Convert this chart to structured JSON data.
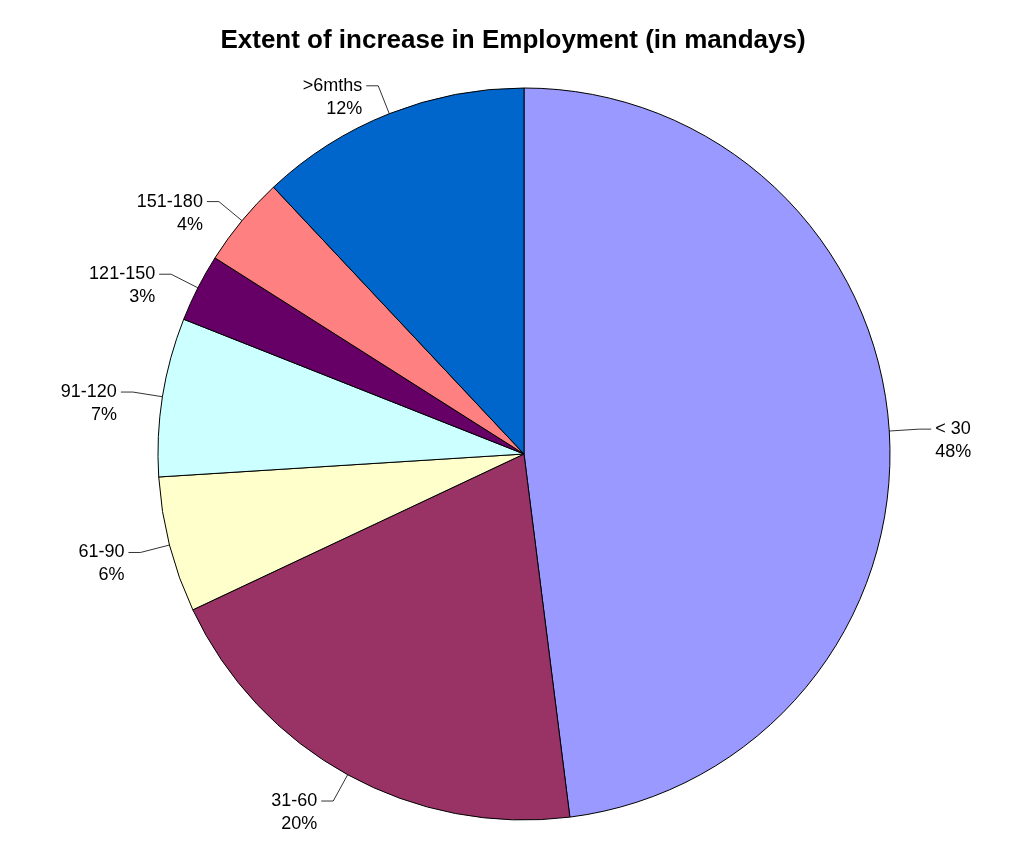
{
  "chart_data": {
    "type": "pie",
    "title": "Extent of increase in Employment (in mandays)",
    "categories": [
      "< 30",
      "31-60",
      "61-90",
      "91-120",
      "121-150",
      "151-180",
      ">6mths"
    ],
    "values": [
      48,
      20,
      6,
      7,
      3,
      4,
      12
    ],
    "value_labels": [
      "48%",
      "20%",
      "6%",
      "7%",
      "3%",
      "4%",
      "12%"
    ],
    "colors": [
      "#9999ff",
      "#993366",
      "#ffffcc",
      "#ccffff",
      "#660066",
      "#ff8080",
      "#0066cc"
    ]
  }
}
